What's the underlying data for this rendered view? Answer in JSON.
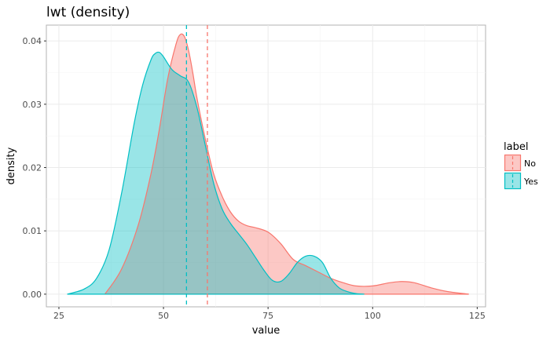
{
  "chart_data": {
    "type": "area",
    "title": "lwt (density)",
    "xlabel": "value",
    "ylabel": "density",
    "xlim": [
      22,
      127
    ],
    "ylim": [
      -0.002,
      0.0425
    ],
    "x_ticks": [
      25,
      50,
      75,
      100,
      125
    ],
    "y_ticks": [
      0.0,
      0.01,
      0.02,
      0.03,
      0.04
    ],
    "x_tick_labels": [
      "25",
      "50",
      "75",
      "100",
      "125"
    ],
    "y_tick_labels": [
      "0.00",
      "0.01",
      "0.02",
      "0.03",
      "0.04"
    ],
    "grid": true,
    "legend": {
      "title": "label",
      "position": "right",
      "entries": [
        "No",
        "Yes"
      ]
    },
    "series": [
      {
        "name": "No",
        "color": "#F8766D",
        "fill": "#F8766D",
        "fill_opacity": 0.4,
        "mean_line": 60.5,
        "x": [
          36,
          40,
          44,
          47,
          49,
          51,
          53,
          54,
          55,
          56,
          57,
          58,
          60,
          62,
          64,
          66,
          68,
          70,
          72,
          75,
          78,
          81,
          84,
          87,
          90,
          93,
          96,
          100,
          104,
          107,
          110,
          114,
          118,
          123
        ],
        "y": [
          0.0,
          0.004,
          0.011,
          0.019,
          0.026,
          0.034,
          0.0395,
          0.041,
          0.0407,
          0.0385,
          0.035,
          0.031,
          0.0245,
          0.019,
          0.0155,
          0.013,
          0.0115,
          0.0108,
          0.0105,
          0.0098,
          0.008,
          0.0055,
          0.0045,
          0.0035,
          0.0025,
          0.0018,
          0.0013,
          0.0013,
          0.0018,
          0.002,
          0.0018,
          0.001,
          0.0004,
          0.0
        ]
      },
      {
        "name": "Yes",
        "color": "#00BFC4",
        "fill": "#00BFC4",
        "fill_opacity": 0.4,
        "mean_line": 55.5,
        "x": [
          27,
          31,
          34,
          37,
          40,
          43,
          45,
          47,
          48,
          49,
          50,
          52,
          54,
          56,
          58,
          60,
          62,
          64,
          66,
          68,
          70,
          72,
          74,
          76,
          78,
          80,
          82,
          84,
          86,
          88,
          90,
          92,
          94,
          96,
          98
        ],
        "y": [
          0.0,
          0.0008,
          0.0025,
          0.007,
          0.016,
          0.027,
          0.033,
          0.037,
          0.038,
          0.0382,
          0.0375,
          0.0355,
          0.0345,
          0.0335,
          0.0295,
          0.0235,
          0.0175,
          0.0135,
          0.0112,
          0.0095,
          0.0078,
          0.0058,
          0.0038,
          0.0022,
          0.002,
          0.0032,
          0.005,
          0.006,
          0.006,
          0.005,
          0.0025,
          0.001,
          0.0004,
          0.0001,
          0.0
        ]
      }
    ]
  }
}
